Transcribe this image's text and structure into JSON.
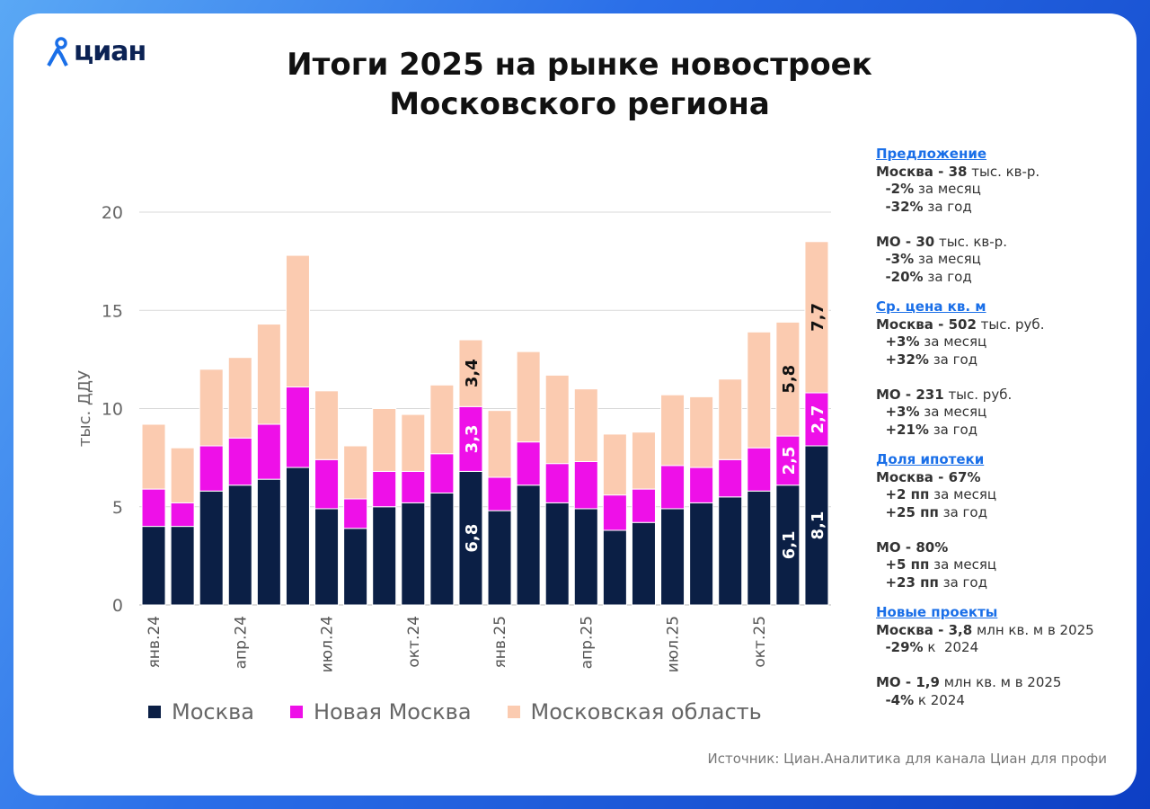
{
  "logo": {
    "text": "циан"
  },
  "title": [
    "Итоги 2025 на рынке новостроек",
    "Московского региона"
  ],
  "colors": {
    "moscow": "#0b1f45",
    "new_moscow": "#ee10e8",
    "region": "#fbcbb0",
    "accent": "#1a6fe8"
  },
  "chart_data": {
    "type": "bar",
    "stacked": true,
    "ylabel": "тыс. ДДУ",
    "ylim": [
      0,
      20
    ],
    "yticks": [
      0,
      5,
      10,
      15,
      20
    ],
    "grid": true,
    "legend_position": "bottom",
    "categories": [
      "янв.24",
      "фев.24",
      "мар.24",
      "апр.24",
      "май.24",
      "июн.24",
      "июл.24",
      "авг.24",
      "сен.24",
      "окт.24",
      "ноя.24",
      "дек.24",
      "янв.25",
      "фев.25",
      "мар.25",
      "апр.25",
      "май.25",
      "июн.25",
      "июл.25",
      "авг.25",
      "сен.25",
      "окт.25",
      "ноя.25",
      "дек.25"
    ],
    "xtick_labels": [
      "янв.24",
      "апр.24",
      "июл.24",
      "окт.24",
      "янв.25",
      "апр.25",
      "июл.25",
      "окт.25"
    ],
    "series": [
      {
        "name": "Москва",
        "values": [
          4.0,
          4.0,
          5.8,
          6.1,
          6.4,
          7.0,
          4.9,
          3.9,
          5.0,
          5.2,
          5.7,
          6.8,
          4.8,
          6.1,
          5.2,
          4.9,
          3.8,
          4.2,
          4.9,
          5.2,
          5.5,
          5.8,
          6.1,
          8.1
        ]
      },
      {
        "name": "Новая Москва",
        "values": [
          1.9,
          1.2,
          2.3,
          2.4,
          2.8,
          4.1,
          2.5,
          1.5,
          1.8,
          1.6,
          2.0,
          3.3,
          1.7,
          2.2,
          2.0,
          2.4,
          1.8,
          1.7,
          2.2,
          1.8,
          1.9,
          2.2,
          2.5,
          2.7
        ]
      },
      {
        "name": "Московская область",
        "values": [
          3.3,
          2.8,
          3.9,
          4.1,
          5.1,
          6.7,
          3.5,
          2.7,
          3.2,
          2.9,
          3.5,
          3.4,
          3.4,
          4.6,
          4.5,
          3.7,
          3.1,
          2.9,
          3.6,
          3.6,
          4.1,
          5.9,
          5.8,
          7.7
        ]
      }
    ],
    "data_labels": [
      {
        "category": "дек.24",
        "values": [
          "6,8",
          "3,3",
          "3,4"
        ]
      },
      {
        "category": "ноя.25",
        "values": [
          "6,1",
          "2,5",
          "5,8"
        ]
      },
      {
        "category": "дек.25",
        "values": [
          "8,1",
          "2,7",
          "7,7"
        ]
      }
    ]
  },
  "sidebar": [
    {
      "heading": "Предложение",
      "lines": [
        [
          [
            "Москва - 38",
            "b"
          ],
          [
            " тыс. кв-р.",
            ""
          ]
        ],
        [
          [
            "  -2%",
            "b"
          ],
          [
            " за месяц",
            ""
          ]
        ],
        [
          [
            "  -32%",
            "b"
          ],
          [
            " за год",
            ""
          ]
        ],
        null,
        [
          [
            "МО - 30",
            "b"
          ],
          [
            " тыс. кв-р.",
            ""
          ]
        ],
        [
          [
            "  -3%",
            "b"
          ],
          [
            " за месяц",
            ""
          ]
        ],
        [
          [
            "  -20%",
            "b"
          ],
          [
            " за год",
            ""
          ]
        ]
      ]
    },
    {
      "heading": "Ср. цена кв. м",
      "lines": [
        [
          [
            "Москва - 502",
            "b"
          ],
          [
            " тыс. руб.",
            ""
          ]
        ],
        [
          [
            "  +3%",
            "b"
          ],
          [
            " за месяц",
            ""
          ]
        ],
        [
          [
            "  +32%",
            "b"
          ],
          [
            " за год",
            ""
          ]
        ],
        null,
        [
          [
            "МО - 231",
            "b"
          ],
          [
            " тыс. руб.",
            ""
          ]
        ],
        [
          [
            "  +3%",
            "b"
          ],
          [
            " за месяц",
            ""
          ]
        ],
        [
          [
            "  +21%",
            "b"
          ],
          [
            " за год",
            ""
          ]
        ]
      ]
    },
    {
      "heading": "Доля ипотеки",
      "lines": [
        [
          [
            "Москва - 67%",
            "b"
          ]
        ],
        [
          [
            "  +2 пп",
            "b"
          ],
          [
            " за месяц",
            ""
          ]
        ],
        [
          [
            "  +25 пп",
            "b"
          ],
          [
            " за год",
            ""
          ]
        ],
        null,
        [
          [
            "МО - 80%",
            "b"
          ]
        ],
        [
          [
            "  +5 пп",
            "b"
          ],
          [
            " за месяц",
            ""
          ]
        ],
        [
          [
            "  +23 пп",
            "b"
          ],
          [
            " за год",
            ""
          ]
        ]
      ]
    },
    {
      "heading": "Новые проекты",
      "lines": [
        [
          [
            "Москва - 3,8",
            "b"
          ],
          [
            " млн кв. м в 2025",
            ""
          ]
        ],
        [
          [
            "  -29%",
            "b"
          ],
          [
            " к  2024",
            ""
          ]
        ],
        null,
        [
          [
            "МО - 1,9",
            "b"
          ],
          [
            " млн кв. м в 2025",
            ""
          ]
        ],
        [
          [
            "  -4%",
            "b"
          ],
          [
            " к 2024",
            ""
          ]
        ]
      ]
    }
  ],
  "source": "Источник: Циан.Аналитика для канала Циан для профи"
}
